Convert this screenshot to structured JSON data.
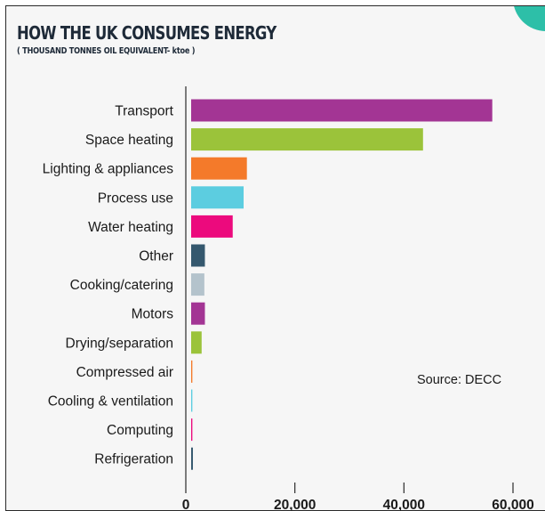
{
  "title": "HOW THE UK CONSUMES ENERGY",
  "subtitle": "( THOUSAND TONNES OIL EQUIVALENT- ktoe )",
  "source": "Source: DECC",
  "chart_data": {
    "type": "bar",
    "orientation": "horizontal",
    "title": "HOW THE UK CONSUMES ENERGY",
    "subtitle": "( THOUSAND TONNES OIL EQUIVALENT- ktoe )",
    "categories": [
      "Transport",
      "Space heating",
      "Lighting & appliances",
      "Process use",
      "Water heating",
      "Other",
      "Cooking/catering",
      "Motors",
      "Drying/separation",
      "Compressed air",
      "Cooling & ventilation",
      "Computing",
      "Refrigeration"
    ],
    "values": [
      56200,
      43500,
      11200,
      10600,
      8600,
      3500,
      3400,
      3500,
      2900,
      1200,
      1200,
      1200,
      1300
    ],
    "colors": [
      "#a33594",
      "#9bc33a",
      "#f47a2a",
      "#5ccde0",
      "#ec0a7d",
      "#35586e",
      "#b4c3cc",
      "#a33594",
      "#9bc33a",
      "#f47a2a",
      "#5ccde0",
      "#ec0a7d",
      "#35586e"
    ],
    "xlim": [
      0,
      60000
    ],
    "xticks": [
      0,
      20000,
      40000,
      60000
    ],
    "xtick_labels": [
      "0",
      "20,000",
      "40,000",
      "60,000"
    ],
    "grid": false,
    "annotation": "Source: DECC"
  }
}
